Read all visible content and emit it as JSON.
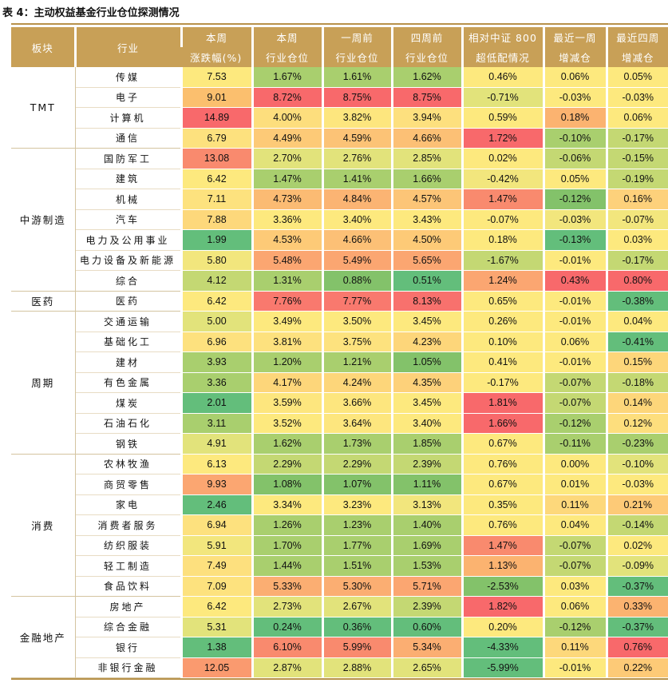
{
  "title": "表 4：主动权益基金行业仓位探测情况",
  "headers": [
    [
      "板块",
      ""
    ],
    [
      "行业",
      ""
    ],
    [
      "本周",
      "涨跌幅(%)"
    ],
    [
      "本周",
      "行业仓位"
    ],
    [
      "一周前",
      "行业仓位"
    ],
    [
      "四周前",
      "行业仓位"
    ],
    [
      "相对中证 800",
      "超低配情况"
    ],
    [
      "最近一周",
      "增减仓"
    ],
    [
      "最近四周",
      "增减仓"
    ]
  ],
  "groups": [
    {
      "sector": "TMT",
      "rows": [
        {
          "industry": "传媒",
          "values": [
            "7.53",
            "1.67%",
            "1.61%",
            "1.62%",
            "0.46%",
            "0.06%",
            "0.05%"
          ],
          "colors": [
            "#fde97e",
            "#a9cf6e",
            "#a9cf6e",
            "#a9cf6e",
            "#fde97e",
            "#fde97e",
            "#fde97e"
          ]
        },
        {
          "industry": "电子",
          "values": [
            "9.01",
            "8.72%",
            "8.75%",
            "8.75%",
            "-0.71%",
            "-0.03%",
            "-0.03%"
          ],
          "colors": [
            "#fbbf6e",
            "#f8696b",
            "#f8696b",
            "#f8696b",
            "#e2e37b",
            "#fde97e",
            "#fde97e"
          ]
        },
        {
          "industry": "计算机",
          "values": [
            "14.89",
            "4.00%",
            "3.82%",
            "3.94%",
            "0.59%",
            "0.18%",
            "0.06%"
          ],
          "colors": [
            "#f8696b",
            "#fdde7d",
            "#fde67e",
            "#fde07e",
            "#fde97e",
            "#fbb370",
            "#fde97e"
          ]
        },
        {
          "industry": "通信",
          "values": [
            "6.79",
            "4.49%",
            "4.59%",
            "4.66%",
            "1.72%",
            "-0.10%",
            "-0.17%"
          ],
          "colors": [
            "#fde17e",
            "#fdca77",
            "#fcc376",
            "#fcc075",
            "#f8696b",
            "#a9cf6e",
            "#c4d873"
          ]
        }
      ]
    },
    {
      "sector": "中游制造",
      "rows": [
        {
          "industry": "国防军工",
          "values": [
            "13.08",
            "2.70%",
            "2.76%",
            "2.85%",
            "0.02%",
            "-0.06%",
            "-0.15%"
          ],
          "colors": [
            "#f98a6e",
            "#e2e37b",
            "#e2e37b",
            "#e2e37b",
            "#fde97e",
            "#c4d873",
            "#c4d873"
          ]
        },
        {
          "industry": "建筑",
          "values": [
            "6.42",
            "1.47%",
            "1.41%",
            "1.66%",
            "-0.42%",
            "0.05%",
            "-0.19%"
          ],
          "colors": [
            "#fde97e",
            "#a9cf6e",
            "#a9cf6e",
            "#a9cf6e",
            "#f2e67d",
            "#fde97e",
            "#c4d873"
          ]
        },
        {
          "industry": "机械",
          "values": [
            "7.11",
            "4.73%",
            "4.84%",
            "4.57%",
            "1.47%",
            "-0.12%",
            "0.16%"
          ],
          "colors": [
            "#fde27e",
            "#fbbb73",
            "#fbb473",
            "#fcc577",
            "#f98a6e",
            "#83c26a",
            "#fdd17b"
          ]
        },
        {
          "industry": "汽车",
          "values": [
            "7.88",
            "3.36%",
            "3.40%",
            "3.43%",
            "-0.07%",
            "-0.03%",
            "-0.07%"
          ],
          "colors": [
            "#fdd87b",
            "#fde97e",
            "#fde97e",
            "#fde97e",
            "#fde97e",
            "#f2e67d",
            "#f2e67d"
          ]
        },
        {
          "industry": "电力及公用事业",
          "values": [
            "1.99",
            "4.53%",
            "4.66%",
            "4.50%",
            "0.18%",
            "-0.13%",
            "0.03%"
          ],
          "colors": [
            "#63be7b",
            "#fdca77",
            "#fcc076",
            "#fdca77",
            "#fde97e",
            "#63be7b",
            "#fde97e"
          ]
        },
        {
          "industry": "电力设备及新能源",
          "values": [
            "5.80",
            "5.48%",
            "5.49%",
            "5.65%",
            "-1.67%",
            "-0.01%",
            "-0.17%"
          ],
          "colors": [
            "#f2e67d",
            "#fba671",
            "#fba671",
            "#fba671",
            "#c4d873",
            "#fde97e",
            "#c4d873"
          ]
        },
        {
          "industry": "综合",
          "values": [
            "4.12",
            "1.31%",
            "0.88%",
            "0.51%",
            "1.24%",
            "0.43%",
            "0.80%"
          ],
          "colors": [
            "#c4d873",
            "#a9cf6e",
            "#83c26a",
            "#63be7b",
            "#fba671",
            "#f8696b",
            "#f8696b"
          ]
        }
      ]
    },
    {
      "sector": "医药",
      "rows": [
        {
          "industry": "医药",
          "values": [
            "6.42",
            "7.76%",
            "7.77%",
            "8.13%",
            "0.65%",
            "-0.01%",
            "-0.38%"
          ],
          "colors": [
            "#fde97e",
            "#f9796e",
            "#f9796e",
            "#f8716d",
            "#fde97e",
            "#fde97e",
            "#63be7b"
          ]
        }
      ]
    },
    {
      "sector": "周期",
      "rows": [
        {
          "industry": "交通运输",
          "values": [
            "5.00",
            "3.49%",
            "3.50%",
            "3.45%",
            "0.26%",
            "-0.01%",
            "0.04%"
          ],
          "colors": [
            "#e2e37b",
            "#fde97e",
            "#fde97e",
            "#fde97e",
            "#fde97e",
            "#fde97e",
            "#fde97e"
          ]
        },
        {
          "industry": "基础化工",
          "values": [
            "6.96",
            "3.81%",
            "3.75%",
            "4.23%",
            "0.10%",
            "0.06%",
            "-0.41%"
          ],
          "colors": [
            "#fde17e",
            "#fde17e",
            "#fde27e",
            "#fdd67a",
            "#fde97e",
            "#fde97e",
            "#63be7b"
          ]
        },
        {
          "industry": "建材",
          "values": [
            "3.93",
            "1.20%",
            "1.21%",
            "1.05%",
            "0.41%",
            "-0.01%",
            "0.15%"
          ],
          "colors": [
            "#a9cf6e",
            "#a9cf6e",
            "#a9cf6e",
            "#83c26a",
            "#fde97e",
            "#fde97e",
            "#fdd67a"
          ]
        },
        {
          "industry": "有色金属",
          "values": [
            "3.36",
            "4.17%",
            "4.24%",
            "4.35%",
            "-0.17%",
            "-0.07%",
            "-0.18%"
          ],
          "colors": [
            "#a9cf6e",
            "#fdd67a",
            "#fdd67a",
            "#fdd17a",
            "#fde97e",
            "#c4d873",
            "#c4d873"
          ]
        },
        {
          "industry": "煤炭",
          "values": [
            "2.01",
            "3.59%",
            "3.66%",
            "3.45%",
            "1.81%",
            "-0.07%",
            "0.14%"
          ],
          "colors": [
            "#63be7b",
            "#fde67e",
            "#fde67e",
            "#fde97e",
            "#f8696b",
            "#c4d873",
            "#fdd67a"
          ]
        },
        {
          "industry": "石油石化",
          "values": [
            "3.11",
            "3.52%",
            "3.64%",
            "3.40%",
            "1.66%",
            "-0.12%",
            "0.12%"
          ],
          "colors": [
            "#a9cf6e",
            "#fde97e",
            "#fde67e",
            "#fde97e",
            "#f8696b",
            "#a9cf6e",
            "#fdde7d"
          ]
        },
        {
          "industry": "钢铁",
          "values": [
            "4.91",
            "1.62%",
            "1.73%",
            "1.85%",
            "0.67%",
            "-0.11%",
            "-0.23%"
          ],
          "colors": [
            "#e2e37b",
            "#a9cf6e",
            "#a9cf6e",
            "#a9cf6e",
            "#fde97e",
            "#a9cf6e",
            "#a9cf6e"
          ]
        }
      ]
    },
    {
      "sector": "消费",
      "rows": [
        {
          "industry": "农林牧渔",
          "values": [
            "6.13",
            "2.29%",
            "2.29%",
            "2.39%",
            "0.76%",
            "0.00%",
            "-0.10%"
          ],
          "colors": [
            "#fde97e",
            "#c4d873",
            "#c4d873",
            "#c4d873",
            "#fde97e",
            "#fde97e",
            "#e2e37b"
          ]
        },
        {
          "industry": "商贸零售",
          "values": [
            "9.93",
            "1.08%",
            "1.07%",
            "1.11%",
            "0.67%",
            "0.01%",
            "-0.03%"
          ],
          "colors": [
            "#fba671",
            "#83c26a",
            "#83c26a",
            "#83c26a",
            "#fde97e",
            "#fde97e",
            "#fde97e"
          ]
        },
        {
          "industry": "家电",
          "values": [
            "2.46",
            "3.34%",
            "3.23%",
            "3.13%",
            "0.35%",
            "0.11%",
            "0.21%"
          ],
          "colors": [
            "#63be7b",
            "#fde97e",
            "#fde97e",
            "#f2e67d",
            "#fde97e",
            "#fdd87b",
            "#fdca77"
          ]
        },
        {
          "industry": "消费者服务",
          "values": [
            "6.94",
            "1.26%",
            "1.23%",
            "1.40%",
            "0.76%",
            "0.04%",
            "-0.14%"
          ],
          "colors": [
            "#fde17e",
            "#a9cf6e",
            "#a9cf6e",
            "#a9cf6e",
            "#fde97e",
            "#fde97e",
            "#c4d873"
          ]
        },
        {
          "industry": "纺织服装",
          "values": [
            "5.91",
            "1.70%",
            "1.77%",
            "1.69%",
            "1.47%",
            "-0.07%",
            "0.02%"
          ],
          "colors": [
            "#f2e67d",
            "#a9cf6e",
            "#a9cf6e",
            "#a9cf6e",
            "#f98a6e",
            "#c4d873",
            "#fde97e"
          ]
        },
        {
          "industry": "轻工制造",
          "values": [
            "7.49",
            "1.44%",
            "1.51%",
            "1.53%",
            "1.13%",
            "-0.07%",
            "-0.09%"
          ],
          "colors": [
            "#fde07e",
            "#a9cf6e",
            "#a9cf6e",
            "#a9cf6e",
            "#fbb370",
            "#c4d873",
            "#e2e37b"
          ]
        },
        {
          "industry": "食品饮料",
          "values": [
            "7.09",
            "5.33%",
            "5.30%",
            "5.71%",
            "-2.53%",
            "0.03%",
            "-0.37%"
          ],
          "colors": [
            "#fde27e",
            "#fbae72",
            "#fbae72",
            "#fba671",
            "#83c26a",
            "#fde97e",
            "#63be7b"
          ]
        }
      ]
    },
    {
      "sector": "金融地产",
      "rows": [
        {
          "industry": "房地产",
          "values": [
            "6.42",
            "2.73%",
            "2.67%",
            "2.39%",
            "1.82%",
            "0.06%",
            "0.33%"
          ],
          "colors": [
            "#fde97e",
            "#e2e37b",
            "#e2e37b",
            "#c4d873",
            "#f8696b",
            "#fde97e",
            "#fbb370"
          ]
        },
        {
          "industry": "综合金融",
          "values": [
            "5.31",
            "0.24%",
            "0.36%",
            "0.60%",
            "0.20%",
            "-0.12%",
            "-0.37%"
          ],
          "colors": [
            "#e2e37b",
            "#63be7b",
            "#63be7b",
            "#63be7b",
            "#fde97e",
            "#a9cf6e",
            "#63be7b"
          ]
        },
        {
          "industry": "银行",
          "values": [
            "1.38",
            "6.10%",
            "5.99%",
            "5.34%",
            "-4.33%",
            "0.11%",
            "0.76%"
          ],
          "colors": [
            "#63be7b",
            "#f98a6e",
            "#f98a6e",
            "#fbae72",
            "#63be7b",
            "#fdd87b",
            "#f8696b"
          ]
        },
        {
          "industry": "非银行金融",
          "values": [
            "12.05",
            "2.87%",
            "2.88%",
            "2.65%",
            "-5.99%",
            "-0.01%",
            "0.22%"
          ],
          "colors": [
            "#fa9a6f",
            "#e2e37b",
            "#e2e37b",
            "#e2e37b",
            "#63be7b",
            "#fde97e",
            "#fdca77"
          ]
        }
      ]
    }
  ]
}
